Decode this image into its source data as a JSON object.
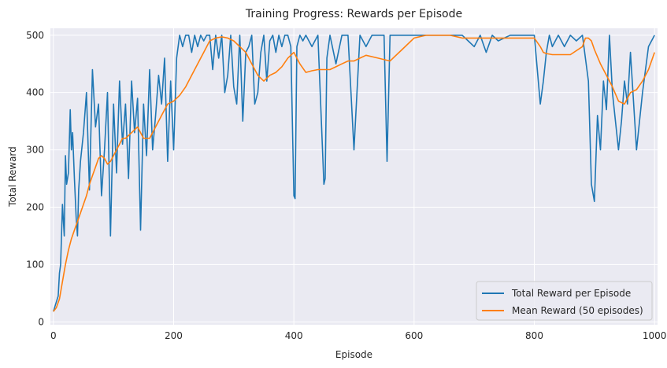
{
  "chart_data": {
    "type": "line",
    "title": "Training Progress: Rewards per Episode",
    "xlabel": "Episode",
    "ylabel": "Total Reward",
    "xlim": [
      -5,
      1005
    ],
    "ylim": [
      -5,
      512
    ],
    "xticks": [
      0,
      200,
      400,
      600,
      800,
      1000
    ],
    "yticks": [
      0,
      100,
      200,
      300,
      400,
      500
    ],
    "grid": true,
    "legend_position": "lower-right",
    "series": [
      {
        "name": "Total Reward per Episode",
        "color": "#1f77b4",
        "x": [
          0,
          5,
          8,
          10,
          12,
          15,
          18,
          20,
          22,
          25,
          28,
          30,
          32,
          35,
          38,
          40,
          42,
          45,
          50,
          55,
          60,
          65,
          70,
          75,
          80,
          85,
          90,
          95,
          100,
          105,
          110,
          115,
          120,
          125,
          130,
          135,
          140,
          145,
          150,
          155,
          160,
          165,
          170,
          175,
          180,
          185,
          190,
          195,
          200,
          205,
          210,
          215,
          220,
          225,
          230,
          235,
          240,
          245,
          250,
          255,
          260,
          265,
          270,
          275,
          280,
          285,
          290,
          295,
          300,
          305,
          310,
          315,
          320,
          325,
          330,
          335,
          340,
          345,
          350,
          355,
          360,
          365,
          370,
          375,
          380,
          385,
          390,
          395,
          400,
          402,
          405,
          410,
          415,
          420,
          430,
          440,
          450,
          452,
          455,
          460,
          470,
          480,
          490,
          500,
          510,
          520,
          530,
          540,
          550,
          555,
          560,
          570,
          580,
          590,
          600,
          610,
          620,
          640,
          660,
          680,
          690,
          700,
          710,
          720,
          730,
          740,
          760,
          780,
          800,
          810,
          815,
          820,
          825,
          830,
          840,
          850,
          860,
          870,
          880,
          890,
          895,
          900,
          905,
          910,
          915,
          920,
          925,
          930,
          940,
          945,
          950,
          955,
          960,
          970,
          980,
          990,
          1000
        ],
        "values": [
          18,
          35,
          45,
          85,
          100,
          205,
          150,
          290,
          240,
          260,
          370,
          300,
          330,
          250,
          180,
          150,
          230,
          280,
          330,
          400,
          230,
          440,
          340,
          380,
          220,
          300,
          400,
          150,
          380,
          260,
          420,
          310,
          380,
          250,
          420,
          330,
          390,
          160,
          380,
          290,
          440,
          300,
          360,
          430,
          380,
          460,
          280,
          420,
          300,
          460,
          500,
          480,
          500,
          500,
          470,
          500,
          480,
          500,
          490,
          500,
          500,
          440,
          500,
          460,
          500,
          400,
          430,
          500,
          410,
          380,
          500,
          350,
          470,
          480,
          500,
          380,
          400,
          470,
          500,
          420,
          490,
          500,
          470,
          500,
          480,
          500,
          500,
          480,
          220,
          215,
          480,
          500,
          490,
          500,
          480,
          500,
          240,
          250,
          460,
          500,
          450,
          500,
          500,
          300,
          500,
          480,
          500,
          500,
          500,
          280,
          500,
          500,
          500,
          500,
          500,
          500,
          500,
          500,
          500,
          500,
          490,
          480,
          500,
          470,
          500,
          490,
          500,
          500,
          500,
          380,
          420,
          470,
          500,
          480,
          500,
          480,
          500,
          490,
          500,
          420,
          240,
          210,
          360,
          300,
          420,
          370,
          500,
          400,
          300,
          350,
          420,
          380,
          470,
          300,
          400,
          480,
          500
        ]
      },
      {
        "name": "Mean Reward (50 episodes)",
        "color": "#ff7f0e",
        "x": [
          0,
          5,
          10,
          15,
          20,
          25,
          30,
          35,
          40,
          45,
          50,
          55,
          60,
          65,
          70,
          75,
          80,
          85,
          90,
          95,
          100,
          110,
          115,
          120,
          130,
          140,
          150,
          160,
          170,
          180,
          190,
          200,
          210,
          220,
          230,
          240,
          250,
          260,
          270,
          280,
          290,
          300,
          310,
          320,
          330,
          340,
          350,
          360,
          370,
          380,
          390,
          400,
          410,
          420,
          430,
          440,
          450,
          460,
          470,
          480,
          490,
          500,
          510,
          520,
          540,
          560,
          580,
          600,
          620,
          640,
          660,
          680,
          700,
          720,
          740,
          760,
          780,
          800,
          810,
          815,
          820,
          830,
          840,
          860,
          880,
          885,
          890,
          895,
          900,
          910,
          920,
          930,
          940,
          950,
          960,
          970,
          980,
          990,
          1000
        ],
        "values": [
          18,
          25,
          40,
          70,
          100,
          125,
          145,
          160,
          175,
          190,
          205,
          220,
          240,
          255,
          270,
          285,
          290,
          285,
          275,
          280,
          290,
          310,
          320,
          320,
          330,
          340,
          320,
          320,
          340,
          360,
          380,
          385,
          395,
          410,
          430,
          450,
          470,
          490,
          495,
          497,
          495,
          490,
          480,
          470,
          450,
          430,
          420,
          430,
          435,
          445,
          460,
          470,
          450,
          435,
          438,
          440,
          440,
          440,
          445,
          450,
          455,
          455,
          460,
          465,
          460,
          455,
          475,
          495,
          500,
          500,
          500,
          495,
          495,
          495,
          495,
          495,
          495,
          495,
          480,
          470,
          468,
          466,
          466,
          466,
          480,
          495,
          495,
          490,
          475,
          450,
          430,
          410,
          385,
          380,
          400,
          405,
          420,
          440,
          470
        ]
      }
    ]
  }
}
